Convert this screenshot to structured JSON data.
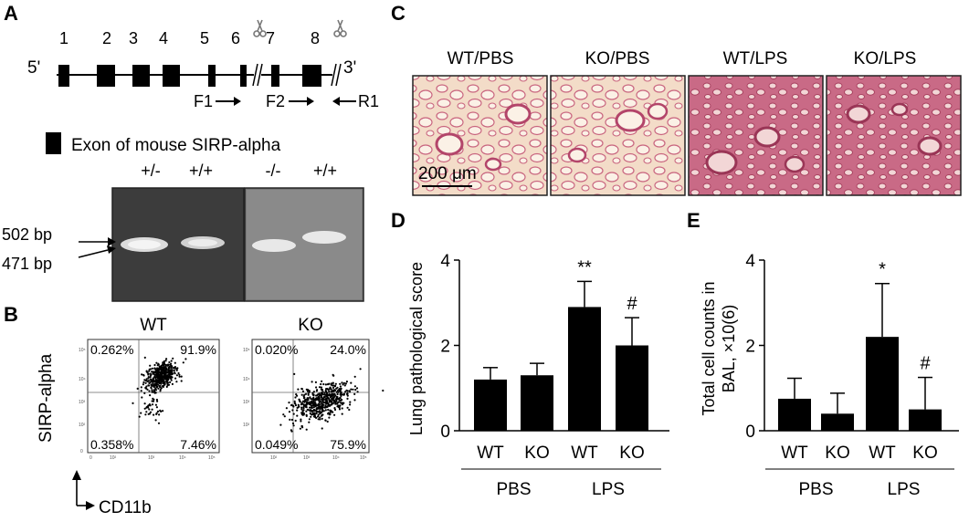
{
  "panel_a": {
    "letter": "A",
    "exon_numbers": [
      "1",
      "2",
      "3",
      "4",
      "5",
      "6",
      "7",
      "8"
    ],
    "five_prime": "5'",
    "three_prime": "3'",
    "primers": [
      "F1",
      "F2",
      "R1"
    ],
    "legend_text": "Exon of mouse SIRP-alpha",
    "gel_lanes": [
      "+/-",
      "+/+",
      "-/-",
      "+/+"
    ],
    "band_labels": [
      "502 bp",
      "471 bp"
    ]
  },
  "panel_b": {
    "letter": "B",
    "y_label": "SIRP-alpha",
    "x_label": "CD11b",
    "plots": [
      {
        "title": "WT",
        "quadrants": [
          "0.262%",
          "91.9%",
          "0.358%",
          "7.46%"
        ]
      },
      {
        "title": "KO",
        "quadrants": [
          "0.020%",
          "24.0%",
          "0.049%",
          "75.9%"
        ]
      }
    ],
    "axis_ticks": [
      "0",
      "10²",
      "10³",
      "10⁴",
      "10⁵"
    ]
  },
  "panel_c": {
    "letter": "C",
    "images": [
      "WT/PBS",
      "KO/PBS",
      "WT/LPS",
      "KO/LPS"
    ],
    "scale_bar": "200 μm"
  },
  "panel_d": {
    "letter": "D",
    "chart_data": {
      "type": "bar",
      "categories": [
        "WT",
        "KO",
        "WT",
        "KO"
      ],
      "groups": [
        "PBS",
        "LPS"
      ],
      "values": [
        1.2,
        1.3,
        2.9,
        2.0
      ],
      "errors": [
        0.28,
        0.28,
        0.6,
        0.65
      ],
      "annotations": [
        "",
        "",
        "**",
        "#"
      ],
      "ylabel": "Lung pathological score",
      "ylim": [
        0,
        4
      ],
      "yticks": [
        "0",
        "2",
        "4"
      ]
    }
  },
  "panel_e": {
    "letter": "E",
    "chart_data": {
      "type": "bar",
      "categories": [
        "WT",
        "KO",
        "WT",
        "KO"
      ],
      "groups": [
        "PBS",
        "LPS"
      ],
      "values": [
        0.75,
        0.4,
        2.2,
        0.5
      ],
      "errors": [
        0.48,
        0.48,
        1.25,
        0.75
      ],
      "annotations": [
        "",
        "",
        "*",
        "#"
      ],
      "ylabel_line1": "Total cell counts in",
      "ylabel_line2": "BAL, ×10(6)",
      "ylim": [
        0,
        4
      ],
      "yticks": [
        "0",
        "2",
        "4"
      ]
    }
  }
}
